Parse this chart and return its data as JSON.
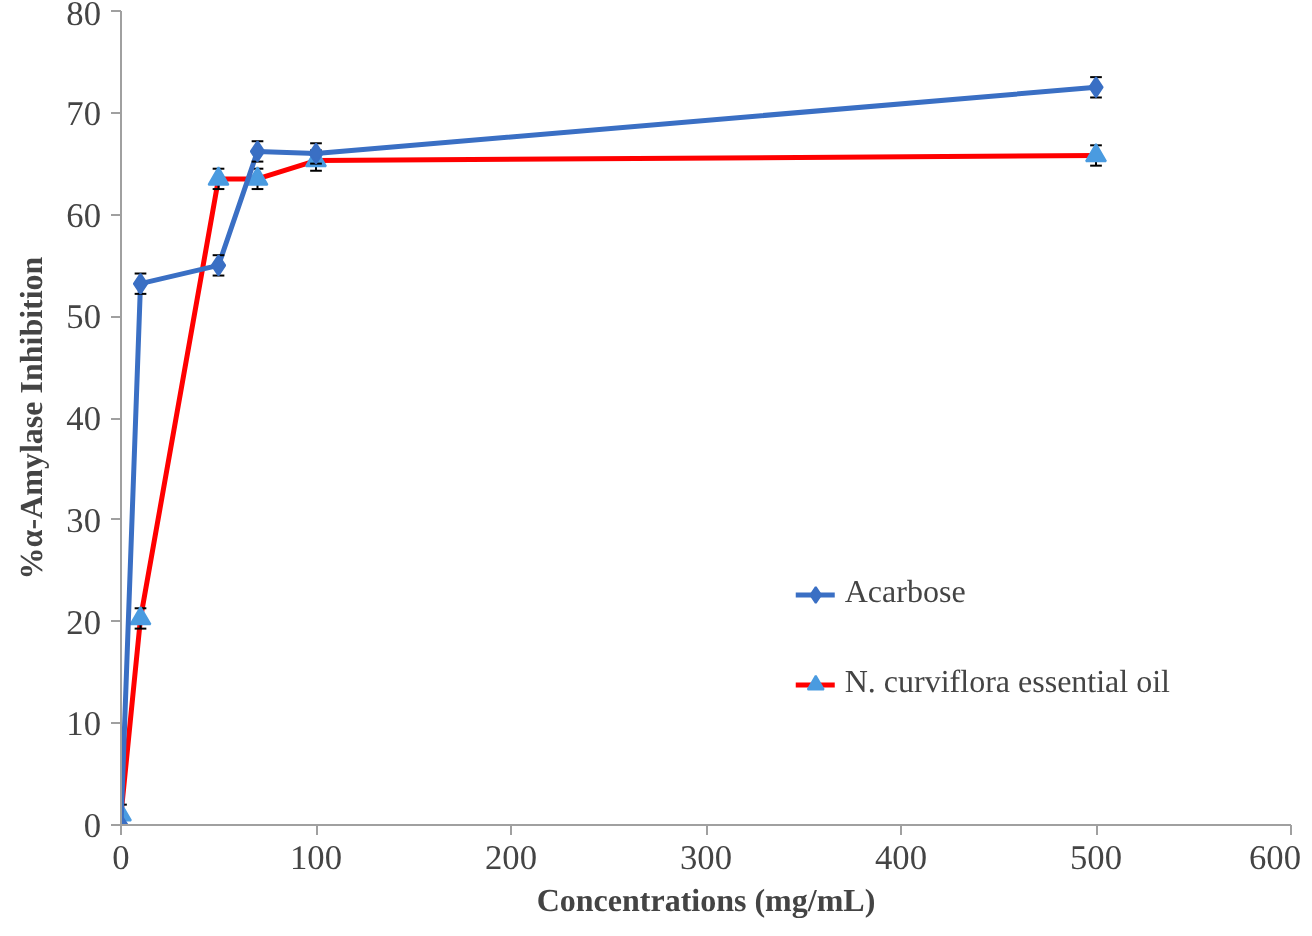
{
  "chart_data": {
    "type": "line",
    "xlabel": "Concentrations (mg/mL)",
    "ylabel": "%α-Amylase Inhibition",
    "xlim": [
      0,
      600
    ],
    "xticks": [
      0,
      100,
      200,
      300,
      400,
      500,
      600
    ],
    "ylim": [
      0,
      80
    ],
    "yticks": [
      0,
      10,
      20,
      30,
      40,
      50,
      60,
      70,
      80
    ],
    "grid": false,
    "legend": "bottom right",
    "line_style": "solid",
    "series": [
      {
        "name": "Acarbose",
        "color": "#3a6fc4",
        "marker": "diamond",
        "x": [
          0,
          10,
          50,
          70,
          100,
          500
        ],
        "values": [
          0,
          53.2,
          55,
          66.2,
          66,
          72.5
        ],
        "errors": [
          null,
          1,
          1,
          1,
          1,
          1
        ]
      },
      {
        "name": "N. curviflora essential oil",
        "color": "#ff0000",
        "colors": [
          "#4a9be0",
          "#4a9be0",
          "#4a9be0",
          "#4a9be0",
          "#4a9be0",
          "#4a9be0"
        ],
        "marker": "triangle",
        "x": [
          0,
          10,
          50,
          70,
          100,
          500
        ],
        "values": [
          1,
          20.3,
          63.5,
          63.5,
          65.3,
          65.8
        ],
        "errors": [
          1,
          1,
          1,
          1,
          1,
          1
        ]
      }
    ]
  }
}
